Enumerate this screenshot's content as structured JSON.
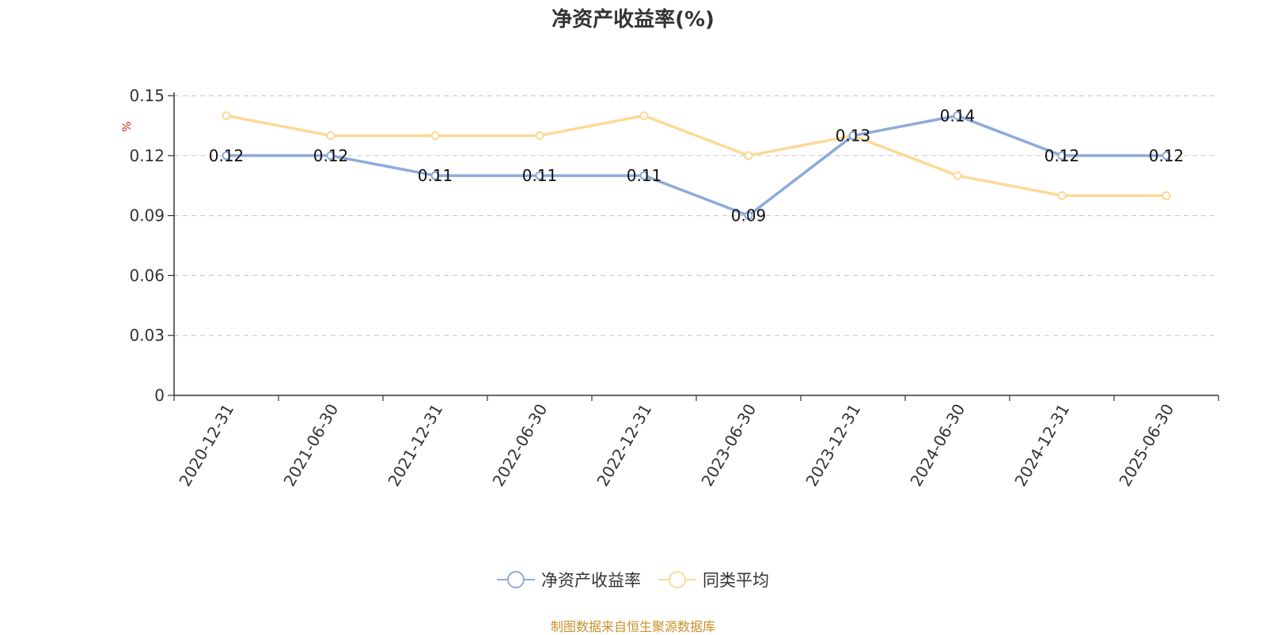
{
  "chart_data": {
    "type": "line",
    "title": "净资产收益率(%)",
    "ylabel": "%",
    "xlabel": "",
    "ylim": [
      0,
      0.15
    ],
    "yticks": [
      0,
      0.03,
      0.06,
      0.09,
      0.12,
      0.15
    ],
    "grid": true,
    "legend_position": "bottom",
    "categories": [
      "2020-12-31",
      "2021-06-30",
      "2021-12-31",
      "2022-06-30",
      "2022-12-31",
      "2023-06-30",
      "2023-12-31",
      "2024-06-30",
      "2024-12-31",
      "2025-06-30"
    ],
    "series": [
      {
        "name": "净资产收益率",
        "color": "#8eaadb",
        "values": [
          0.12,
          0.12,
          0.11,
          0.11,
          0.11,
          0.09,
          0.13,
          0.14,
          0.12,
          0.12
        ],
        "show_labels": true
      },
      {
        "name": "同类平均",
        "color": "#fcd996",
        "values": [
          0.14,
          0.13,
          0.13,
          0.13,
          0.14,
          0.12,
          0.13,
          0.11,
          0.1,
          0.1
        ],
        "show_labels": false
      }
    ]
  },
  "source_note": "制图数据来自恒生聚源数据库"
}
